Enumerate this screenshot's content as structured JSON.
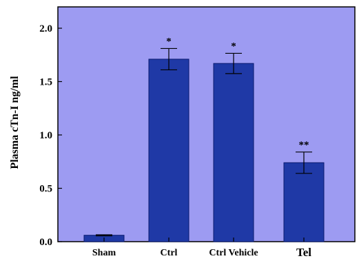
{
  "chart_data": {
    "type": "bar",
    "title": "",
    "xlabel": "",
    "ylabel": "Plasma cTn-I ng/ml",
    "ylim": [
      0,
      2.2
    ],
    "yticks": [
      "0.0",
      "0.5",
      "1.0",
      "1.5",
      "2.0"
    ],
    "ytick_values": [
      0,
      0.5,
      1.0,
      1.5,
      2.0
    ],
    "categories": [
      "Sham",
      "Ctrl",
      "Ctrl Vehicle",
      "Tel"
    ],
    "values": [
      0.06,
      1.71,
      1.67,
      0.74
    ],
    "errors": [
      0.005,
      0.1,
      0.095,
      0.1
    ],
    "annotations": [
      "",
      "*",
      "*",
      "**"
    ],
    "grid": false,
    "legend": "none",
    "colors": {
      "plot_background": "#9d9bf2",
      "bar_fill": "#1f39a6",
      "bar_edge": "#0a1a6e"
    }
  }
}
